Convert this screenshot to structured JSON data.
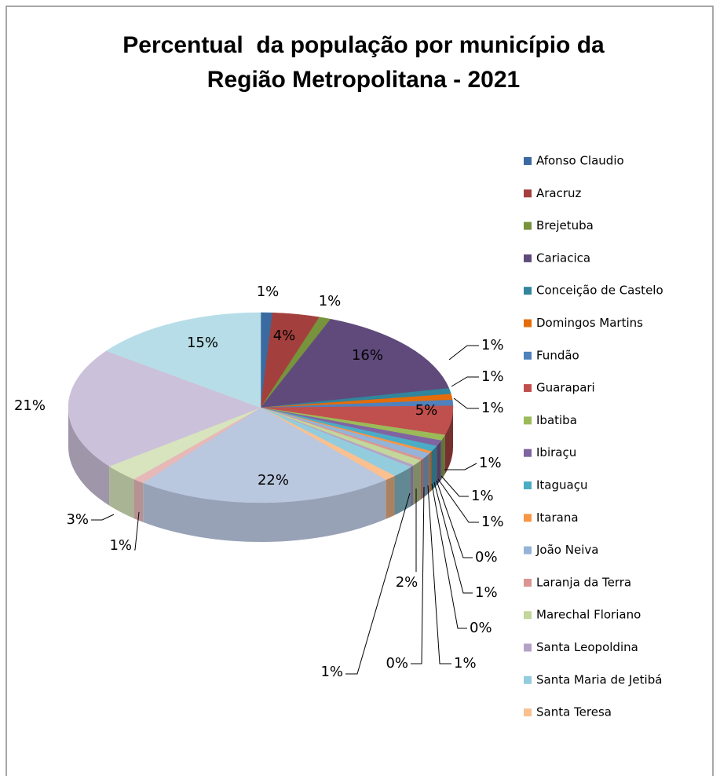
{
  "chart_data": {
    "type": "pie",
    "title": "Percentual  da população por município da Região Metropolitana - 2021",
    "three_d": true,
    "legend": "right",
    "categories": [
      "Afonso Claudio",
      "Aracruz",
      "Brejetuba",
      "Cariacica",
      "Conceição de Castelo",
      "Domingos Martins",
      "Fundão",
      "Guarapari",
      "Ibatiba",
      "Ibiraçu",
      "Itaguaçu",
      "Itarana",
      "João Neiva",
      "Laranja da Terra",
      "Marechal Floriano",
      "Santa Leopoldina",
      "Santa Maria de Jetibá",
      "Santa Teresa",
      null,
      null,
      null,
      null,
      null
    ],
    "values": [
      1,
      4,
      1,
      16,
      1,
      1,
      1,
      5,
      1,
      1,
      1,
      0.4,
      1,
      0.4,
      1,
      0.4,
      2,
      1,
      22,
      1,
      3,
      21,
      15
    ],
    "value_labels": [
      "1%",
      "4%",
      "1%",
      "16%",
      "1%",
      "1%",
      "1%",
      "5%",
      "1%",
      "1%",
      "1%",
      "0%",
      "1%",
      "0%",
      "1%",
      "0%",
      "2%",
      "1%",
      "22%",
      "1%",
      "3%",
      "21%",
      "15%"
    ],
    "colors": [
      "#3B6AA0",
      "#A3403D",
      "#77933C",
      "#604A7B",
      "#31859C",
      "#E46C0A",
      "#4F81BD",
      "#C0504D",
      "#9BBB59",
      "#8064A2",
      "#4BACC6",
      "#F79646",
      "#95B3D7",
      "#D99694",
      "#C3D69B",
      "#B3A2C7",
      "#93CDDD",
      "#FAC090",
      "#B9C7DF",
      "#E6B9B8",
      "#D7E4BD",
      "#CCC1DA",
      "#B7DEE8"
    ]
  }
}
